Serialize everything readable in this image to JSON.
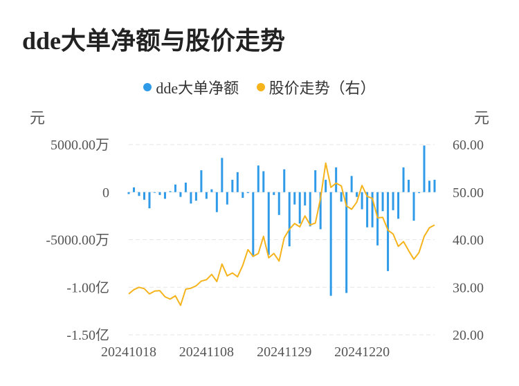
{
  "title": "dde大单净额与股价走势",
  "colors": {
    "bar": "#2f9be8",
    "line": "#f5b31c",
    "grid": "#e6e6e6",
    "axis_text": "#555555"
  },
  "chart_data": {
    "type": "bar+line",
    "legend": [
      "dde大单净额",
      "股价走势（右）"
    ],
    "left_axis": {
      "unit_label": "元",
      "ticks": [
        "5000.00万",
        "0",
        "-5000.00万",
        "-1.00亿",
        "-1.50亿"
      ],
      "tick_values": [
        5000,
        0,
        -5000,
        -10000,
        -15000
      ],
      "ylim": [
        -15000,
        5000
      ],
      "units": "万元"
    },
    "right_axis": {
      "unit_label": "元",
      "ticks": [
        "60.00",
        "50.00",
        "40.00",
        "30.00",
        "20.00"
      ],
      "tick_values": [
        60,
        50,
        40,
        30,
        20
      ],
      "ylim": [
        20,
        60
      ]
    },
    "x_ticks": [
      "20241018",
      "20241108",
      "20241129",
      "20241220"
    ],
    "x_tick_index": [
      0,
      15,
      30,
      45
    ],
    "series": [
      {
        "name": "dde大单净额",
        "type": "bar",
        "values": [
          -200,
          500,
          -400,
          -800,
          -1700,
          0,
          -300,
          -700,
          100,
          800,
          -500,
          1000,
          -1200,
          -900,
          2300,
          -700,
          300,
          -2100,
          3600,
          -1300,
          1300,
          2100,
          -600,
          -100,
          -6800,
          2800,
          2200,
          -6600,
          -300,
          -2400,
          2400,
          -5700,
          -1300,
          -3300,
          -1400,
          -3600,
          2300,
          -3900,
          1300,
          -10900,
          2600,
          -1000,
          -10600,
          1700,
          -500,
          -1800,
          -3700,
          -3700,
          -5600,
          -2000,
          -8300,
          -1900,
          -2800,
          2600,
          1300,
          -3000,
          -100,
          4900,
          1200,
          1300
        ]
      },
      {
        "name": "股价走势（右）",
        "type": "line",
        "values": [
          28.6,
          29.5,
          30.0,
          29.7,
          28.6,
          29.2,
          29.3,
          28.0,
          27.5,
          28.2,
          26.2,
          29.6,
          29.8,
          30.3,
          31.3,
          31.6,
          32.7,
          31.2,
          34.9,
          32.4,
          33.0,
          32.2,
          34.6,
          37.9,
          36.5,
          37.1,
          40.7,
          36.2,
          37.1,
          35.5,
          40.4,
          42.2,
          43.4,
          42.7,
          45.0,
          43.1,
          43.5,
          48.7,
          56.1,
          51.0,
          51.9,
          51.3,
          47.1,
          46.4,
          47.9,
          51.4,
          49.1,
          48.7,
          44.6,
          44.7,
          42.0,
          41.2,
          38.6,
          39.6,
          37.7,
          35.9,
          37.3,
          40.7,
          42.5,
          43.1
        ]
      }
    ],
    "grid": true,
    "legend_position": "top-center"
  }
}
